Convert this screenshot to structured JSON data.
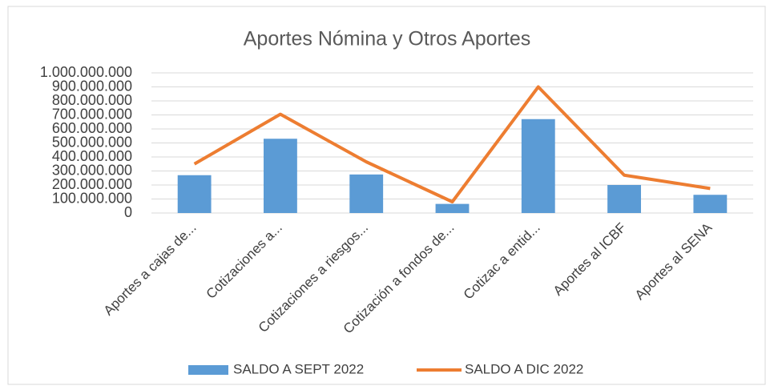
{
  "chart_data": {
    "type": "bar",
    "title": "Aportes Nómina y Otros Aportes",
    "categories": [
      "Aportes a cajas de...",
      "Cotizaciones a...",
      "Cotizaciones a riesgos...",
      "Cotización a fondos de...",
      "Cotizac a entid...",
      "Aportes al ICBF",
      "Aportes al SENA"
    ],
    "series": [
      {
        "name": "SALDO A SEPT 2022",
        "type": "bar",
        "color": "#5b9bd5",
        "values": [
          270000000,
          530000000,
          275000000,
          65000000,
          670000000,
          200000000,
          130000000
        ]
      },
      {
        "name": "SALDO A DIC 2022",
        "type": "line",
        "color": "#ed7d31",
        "values": [
          350000000,
          705000000,
          365000000,
          80000000,
          900000000,
          270000000,
          175000000
        ]
      }
    ],
    "ylim": [
      0,
      1000000000
    ],
    "yticks": [
      0,
      {
        "value": 100000000,
        "label": "100.000.000"
      },
      {
        "value": 200000000,
        "label": "200.000.000"
      },
      {
        "value": 300000000,
        "label": "300.000.000"
      },
      {
        "value": 400000000,
        "label": "400.000.000"
      },
      {
        "value": 500000000,
        "label": "500.000.000"
      },
      {
        "value": 600000000,
        "label": "600.000.000"
      },
      {
        "value": 700000000,
        "label": "700.000.000"
      },
      {
        "value": 800000000,
        "label": "800.000.000"
      },
      {
        "value": 900000000,
        "label": "900.000.000"
      },
      {
        "value": 1000000000,
        "label": "1.000.000.000"
      }
    ],
    "grid": true,
    "legend": "bottom"
  }
}
